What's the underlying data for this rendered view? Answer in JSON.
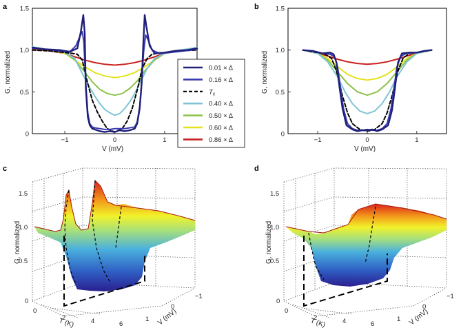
{
  "panels": {
    "a": {
      "label": "a"
    },
    "b": {
      "label": "b"
    },
    "c": {
      "label": "c"
    },
    "d": {
      "label": "d"
    }
  },
  "legend": {
    "entries": [
      {
        "text": "0.01 × Δ",
        "color": "#1f1f7a",
        "dash": false
      },
      {
        "text": "0.16 × Δ",
        "color": "#3b3bb0",
        "dash": false
      },
      {
        "text": "Tc",
        "color": "#000000",
        "dash": true
      },
      {
        "text": "0.40 × Δ",
        "color": "#7fc4d6",
        "dash": false
      },
      {
        "text": "0.50 × Δ",
        "color": "#8cc34a",
        "dash": false
      },
      {
        "text": "0.60 × Δ",
        "color": "#e3e31a",
        "dash": false
      },
      {
        "text": "0.86 × Δ",
        "color": "#c8201e",
        "dash": false
      }
    ]
  },
  "axes": {
    "ylabel": "G, normalized",
    "xlabel": "V (mV)",
    "tlabel": "T (K)",
    "vlabel3d": "V (mV)"
  },
  "chart_data": [
    {
      "panel": "a",
      "type": "line",
      "xlabel": "V (mV)",
      "ylabel": "G, normalized",
      "xlim": [
        -1.65,
        1.65
      ],
      "ylim": [
        0,
        1.5
      ],
      "xticks": [
        -1,
        0,
        1
      ],
      "yticks": [
        0,
        0.5,
        1.0,
        1.5
      ],
      "series": [
        {
          "name": "0.01 × Δ",
          "color": "#1f1f7a",
          "width": 2.4,
          "dash": false,
          "x": [
            -1.65,
            -1.4,
            -1.1,
            -0.9,
            -0.75,
            -0.68,
            -0.63,
            -0.6,
            -0.58,
            -0.54,
            -0.5,
            -0.45,
            -0.4,
            -0.3,
            -0.2,
            -0.1,
            0,
            0.1,
            0.2,
            0.3,
            0.4,
            0.45,
            0.5,
            0.54,
            0.57,
            0.6,
            0.63,
            0.7,
            0.8,
            1.0,
            1.2,
            1.45,
            1.65
          ],
          "y": [
            1.03,
            1.01,
            1.0,
            0.98,
            1.02,
            1.22,
            1.42,
            1.2,
            0.55,
            0.2,
            0.1,
            0.06,
            0.05,
            0.03,
            0.02,
            0.03,
            0.02,
            0.04,
            0.03,
            0.04,
            0.06,
            0.12,
            0.3,
            0.6,
            1.05,
            1.42,
            1.3,
            1.05,
            0.96,
            0.97,
            0.99,
            1.0,
            1.02
          ]
        },
        {
          "name": "0.16 × Δ",
          "color": "#3b3bb0",
          "width": 2.0,
          "dash": false,
          "x": [
            -1.65,
            -1.4,
            -1.1,
            -0.9,
            -0.78,
            -0.7,
            -0.65,
            -0.62,
            -0.58,
            -0.54,
            -0.5,
            -0.45,
            -0.4,
            -0.3,
            -0.2,
            -0.1,
            0,
            0.1,
            0.2,
            0.3,
            0.4,
            0.45,
            0.5,
            0.54,
            0.58,
            0.62,
            0.67,
            0.75,
            0.9,
            1.1,
            1.4,
            1.65
          ],
          "y": [
            1.02,
            1.01,
            0.99,
            0.98,
            1.05,
            1.16,
            1.22,
            1.1,
            0.6,
            0.25,
            0.12,
            0.08,
            0.07,
            0.06,
            0.05,
            0.05,
            0.06,
            0.06,
            0.06,
            0.07,
            0.08,
            0.14,
            0.32,
            0.62,
            0.98,
            1.18,
            1.12,
            1.0,
            0.96,
            0.97,
            0.99,
            1.01
          ]
        },
        {
          "name": "Tc",
          "color": "#000000",
          "width": 2.0,
          "dash": true,
          "x": [
            -1.65,
            -1.3,
            -1.0,
            -0.85,
            -0.75,
            -0.65,
            -0.55,
            -0.45,
            -0.35,
            -0.25,
            -0.15,
            0,
            0.15,
            0.25,
            0.35,
            0.45,
            0.55,
            0.65,
            0.75,
            0.85,
            1.0,
            1.3,
            1.65
          ],
          "y": [
            1.0,
            0.99,
            0.97,
            0.96,
            0.95,
            0.88,
            0.62,
            0.4,
            0.26,
            0.15,
            0.06,
            0.02,
            0.06,
            0.15,
            0.3,
            0.52,
            0.78,
            0.9,
            0.95,
            0.96,
            0.97,
            0.99,
            1.0
          ]
        },
        {
          "name": "0.40 × Δ",
          "color": "#7fc4d6",
          "width": 2.0,
          "dash": false,
          "x": [
            -1.65,
            -1.3,
            -1.0,
            -0.8,
            -0.65,
            -0.5,
            -0.4,
            -0.3,
            -0.2,
            -0.1,
            0,
            0.1,
            0.2,
            0.3,
            0.4,
            0.5,
            0.65,
            0.8,
            1.0,
            1.3,
            1.65
          ],
          "y": [
            1.04,
            1.0,
            0.97,
            0.9,
            0.72,
            0.55,
            0.45,
            0.36,
            0.29,
            0.25,
            0.22,
            0.24,
            0.3,
            0.38,
            0.48,
            0.6,
            0.78,
            0.9,
            0.96,
            1.0,
            1.03
          ]
        },
        {
          "name": "0.50 × Δ",
          "color": "#8cc34a",
          "width": 2.0,
          "dash": false,
          "x": [
            -1.65,
            -1.3,
            -1.0,
            -0.8,
            -0.6,
            -0.45,
            -0.3,
            -0.15,
            0,
            0.15,
            0.3,
            0.45,
            0.6,
            0.8,
            1.0,
            1.3,
            1.65
          ],
          "y": [
            1.03,
            1.0,
            0.97,
            0.88,
            0.74,
            0.62,
            0.53,
            0.48,
            0.46,
            0.48,
            0.54,
            0.63,
            0.75,
            0.88,
            0.96,
            1.0,
            1.02
          ]
        },
        {
          "name": "0.60 × Δ",
          "color": "#e3e31a",
          "width": 2.0,
          "dash": false,
          "x": [
            -1.65,
            -1.3,
            -1.0,
            -0.8,
            -0.6,
            -0.4,
            -0.2,
            0,
            0.2,
            0.4,
            0.6,
            0.8,
            1.0,
            1.3,
            1.65
          ],
          "y": [
            1.02,
            1.0,
            0.96,
            0.88,
            0.8,
            0.73,
            0.69,
            0.67,
            0.69,
            0.73,
            0.8,
            0.88,
            0.96,
            1.0,
            1.02
          ]
        },
        {
          "name": "0.86 × Δ",
          "color": "#c8201e",
          "width": 2.0,
          "dash": false,
          "x": [
            -1.65,
            -1.3,
            -1.0,
            -0.8,
            -0.6,
            -0.4,
            -0.2,
            0,
            0.2,
            0.4,
            0.6,
            0.8,
            1.0,
            1.3,
            1.65
          ],
          "y": [
            1.01,
            0.99,
            0.96,
            0.92,
            0.88,
            0.85,
            0.83,
            0.82,
            0.83,
            0.85,
            0.88,
            0.92,
            0.96,
            0.99,
            1.01
          ]
        }
      ]
    },
    {
      "panel": "b",
      "type": "line",
      "xlabel": "V (mV)",
      "ylabel": "G, normalized",
      "xlim": [
        -1.6,
        1.6
      ],
      "ylim": [
        0,
        1.5
      ],
      "xticks": [
        -1,
        0,
        1
      ],
      "yticks": [
        0,
        0.5,
        1.0,
        1.5
      ],
      "series": [
        {
          "name": "0.01 × Δ",
          "color": "#1f1f7a",
          "width": 2.4,
          "dash": false,
          "x": [
            -1.3,
            -1.1,
            -0.9,
            -0.75,
            -0.68,
            -0.62,
            -0.56,
            -0.5,
            -0.42,
            -0.3,
            -0.2,
            -0.1,
            0,
            0.1,
            0.2,
            0.3,
            0.42,
            0.5,
            0.56,
            0.62,
            0.7,
            0.85,
            1.0,
            1.15,
            1.3
          ],
          "y": [
            1.0,
            0.99,
            0.96,
            0.97,
            0.95,
            0.85,
            0.55,
            0.3,
            0.1,
            0.05,
            0.03,
            0.04,
            0.04,
            0.05,
            0.03,
            0.05,
            0.1,
            0.28,
            0.55,
            0.85,
            0.96,
            0.97,
            0.97,
            0.99,
            1.0
          ]
        },
        {
          "name": "0.16 × Δ",
          "color": "#3b3bb0",
          "width": 2.0,
          "dash": false,
          "x": [
            -1.3,
            -1.1,
            -0.9,
            -0.75,
            -0.66,
            -0.6,
            -0.54,
            -0.48,
            -0.4,
            -0.3,
            -0.2,
            -0.1,
            0,
            0.1,
            0.2,
            0.3,
            0.4,
            0.48,
            0.54,
            0.6,
            0.68,
            0.8,
            1.0,
            1.15,
            1.3
          ],
          "y": [
            1.0,
            0.99,
            0.96,
            0.95,
            0.92,
            0.8,
            0.55,
            0.3,
            0.12,
            0.06,
            0.04,
            0.04,
            0.05,
            0.04,
            0.04,
            0.06,
            0.12,
            0.3,
            0.55,
            0.8,
            0.93,
            0.96,
            0.97,
            0.99,
            1.0
          ]
        },
        {
          "name": "Tc",
          "color": "#000000",
          "width": 2.0,
          "dash": true,
          "x": [
            -1.3,
            -1.0,
            -0.85,
            -0.72,
            -0.62,
            -0.5,
            -0.4,
            -0.3,
            -0.15,
            0,
            0.15,
            0.3,
            0.4,
            0.5,
            0.62,
            0.72,
            0.85,
            1.0,
            1.3
          ],
          "y": [
            1.0,
            0.97,
            0.95,
            0.9,
            0.75,
            0.45,
            0.25,
            0.12,
            0.05,
            0.03,
            0.05,
            0.12,
            0.25,
            0.45,
            0.75,
            0.9,
            0.96,
            0.97,
            1.0
          ]
        },
        {
          "name": "0.40 × Δ",
          "color": "#7fc4d6",
          "width": 2.0,
          "dash": false,
          "x": [
            -1.3,
            -1.0,
            -0.8,
            -0.6,
            -0.45,
            -0.3,
            -0.15,
            0,
            0.15,
            0.3,
            0.45,
            0.6,
            0.8,
            1.0,
            1.3
          ],
          "y": [
            1.0,
            0.96,
            0.86,
            0.68,
            0.5,
            0.36,
            0.27,
            0.24,
            0.27,
            0.36,
            0.5,
            0.68,
            0.86,
            0.96,
            1.0
          ]
        },
        {
          "name": "0.50 × Δ",
          "color": "#8cc34a",
          "width": 2.0,
          "dash": false,
          "x": [
            -1.3,
            -1.0,
            -0.8,
            -0.6,
            -0.4,
            -0.2,
            0,
            0.2,
            0.4,
            0.6,
            0.8,
            1.0,
            1.3
          ],
          "y": [
            1.0,
            0.96,
            0.88,
            0.74,
            0.6,
            0.5,
            0.46,
            0.5,
            0.6,
            0.74,
            0.88,
            0.96,
            1.0
          ]
        },
        {
          "name": "0.60 × Δ",
          "color": "#e3e31a",
          "width": 2.0,
          "dash": false,
          "x": [
            -1.3,
            -1.0,
            -0.8,
            -0.6,
            -0.4,
            -0.2,
            0,
            0.2,
            0.4,
            0.6,
            0.8,
            1.0,
            1.3
          ],
          "y": [
            1.0,
            0.96,
            0.9,
            0.8,
            0.71,
            0.66,
            0.64,
            0.66,
            0.71,
            0.8,
            0.9,
            0.96,
            1.0
          ]
        },
        {
          "name": "0.86 × Δ",
          "color": "#c8201e",
          "width": 2.0,
          "dash": false,
          "x": [
            -1.3,
            -1.0,
            -0.8,
            -0.6,
            -0.4,
            -0.2,
            0,
            0.2,
            0.4,
            0.6,
            0.8,
            1.0,
            1.3
          ],
          "y": [
            1.0,
            0.96,
            0.93,
            0.89,
            0.86,
            0.84,
            0.83,
            0.84,
            0.86,
            0.89,
            0.93,
            0.96,
            1.0
          ]
        }
      ]
    },
    {
      "panel": "c",
      "type": "surface",
      "xlabel": "T (K)",
      "ylabel": "V (mV)",
      "zlabel": "G, normalized",
      "tticks": [
        0,
        2,
        4,
        6
      ],
      "vticks": [
        1,
        0,
        -1
      ],
      "zticks": [
        0,
        0.5,
        1.0,
        1.5
      ],
      "colormap": [
        "#2a1f8f",
        "#2f5fc4",
        "#4ab0dd",
        "#a8e07a",
        "#f2f22a",
        "#f39a1a",
        "#d8241c"
      ]
    },
    {
      "panel": "d",
      "type": "surface",
      "xlabel": "T (K)",
      "ylabel": "V (mV)",
      "zlabel": "G, normalized",
      "tticks": [
        0,
        2,
        4,
        6
      ],
      "vticks": [
        1,
        0,
        -1
      ],
      "zticks": [
        0,
        0.5,
        1.0,
        1.5
      ],
      "colormap": [
        "#2a1f8f",
        "#2f5fc4",
        "#4ab0dd",
        "#a8e07a",
        "#f2f22a",
        "#f39a1a",
        "#d8241c"
      ]
    }
  ]
}
